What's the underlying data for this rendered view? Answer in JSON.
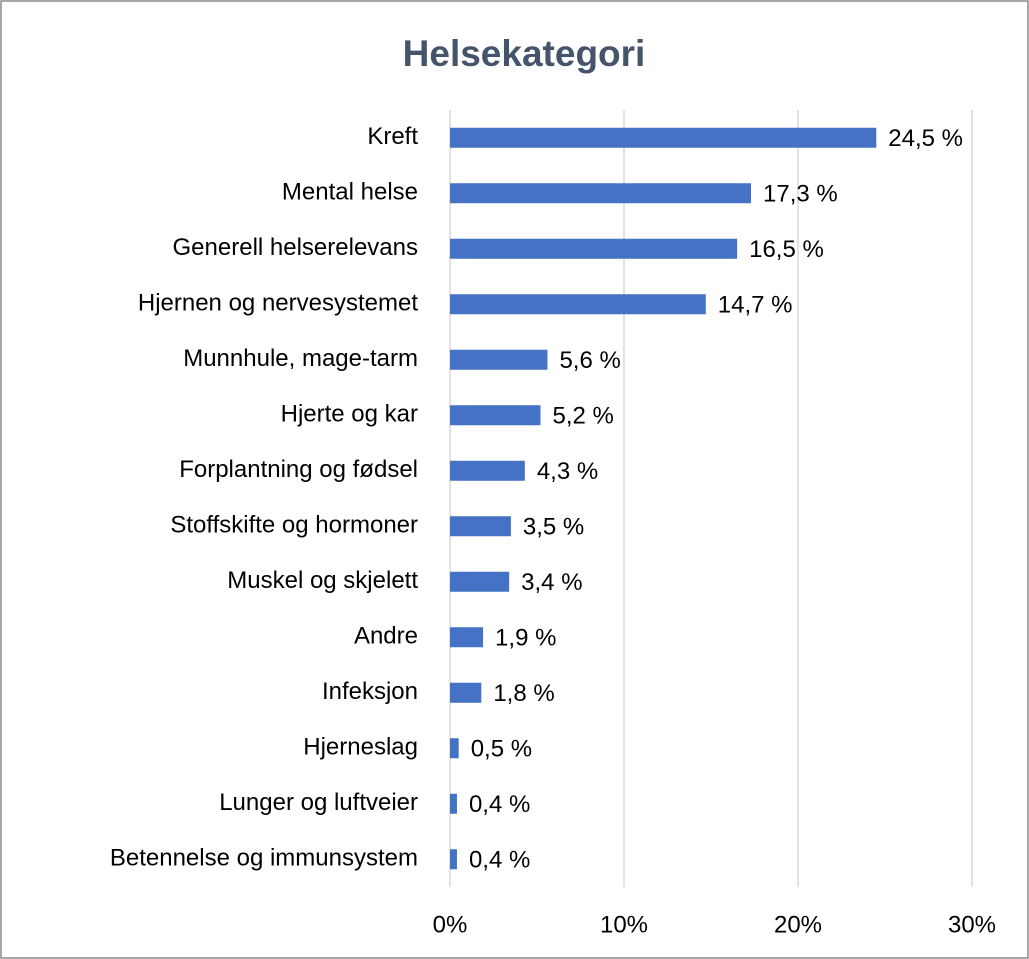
{
  "chart_data": {
    "type": "bar",
    "orientation": "horizontal",
    "title": "Helsekategori",
    "categories": [
      "Kreft",
      "Mental helse",
      "Generell helserelevans",
      "Hjernen og nervesystemet",
      "Munnhule, mage-tarm",
      "Hjerte og kar",
      "Forplantning og fødsel",
      "Stoffskifte og hormoner",
      "Muskel og skjelett",
      "Andre",
      "Infeksjon",
      "Hjerneslag",
      "Lunger og luftveier",
      "Betennelse og immunsystem"
    ],
    "values": [
      24.5,
      17.3,
      16.5,
      14.7,
      5.6,
      5.2,
      4.3,
      3.5,
      3.4,
      1.9,
      1.8,
      0.5,
      0.4,
      0.4
    ],
    "value_labels": [
      "24,5 %",
      "17,3 %",
      "16,5 %",
      "14,7 %",
      "5,6 %",
      "5,2 %",
      "4,3 %",
      "3,5 %",
      "3,4 %",
      "1,9 %",
      "1,8 %",
      "0,5 %",
      "0,4 %",
      "0,4 %"
    ],
    "color": "#4472c4",
    "xlim": [
      0,
      30
    ],
    "xticks": [
      {
        "value": 0,
        "label": "0%"
      },
      {
        "value": 10,
        "label": "10%"
      },
      {
        "value": 20,
        "label": "20%"
      },
      {
        "value": 30,
        "label": "30%"
      }
    ],
    "grid": true
  }
}
